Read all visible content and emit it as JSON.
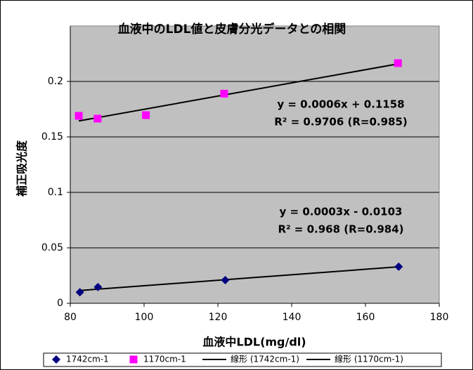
{
  "chart_data": {
    "type": "scatter",
    "title": "血液中のLDL値と皮膚分光データとの相関",
    "x_label": "血液中LDL(mg/dl)",
    "y_label": "補正吸光度",
    "xlim": [
      80,
      180
    ],
    "xticks": [
      80,
      100,
      120,
      140,
      160,
      180
    ],
    "ylim": [
      0,
      0.25
    ],
    "yticks": [
      0,
      0.05,
      0.1,
      0.15,
      0.2
    ],
    "grid": true,
    "series": [
      {
        "name": "1742cm-1",
        "color": "#000080",
        "marker": "diamond",
        "x": [
          82.6,
          87.5,
          122,
          169
        ],
        "values": [
          0.01,
          0.0146,
          0.0209,
          0.033
        ]
      },
      {
        "name": "1170cm-1",
        "color": "#ff00ff",
        "marker": "square",
        "x": [
          82.3,
          87.4,
          100.5,
          121.7,
          168.8
        ],
        "values": [
          0.169,
          0.1665,
          0.1696,
          0.189,
          0.2165
        ]
      }
    ],
    "trendlines": [
      {
        "name": "線形 (1742cm-1)",
        "color": "#000000",
        "label_color": "#0033cc",
        "equation": "y = 0.0003x - 0.0103",
        "r2": "R² = 0.968 (R=0.984)"
      },
      {
        "name": "線形 (1170cm-1)",
        "color": "#000000",
        "label_color": "#ff00ff",
        "equation": "y = 0.0006x + 0.1158",
        "r2": "R² = 0.9706 (R=0.985)"
      }
    ]
  }
}
